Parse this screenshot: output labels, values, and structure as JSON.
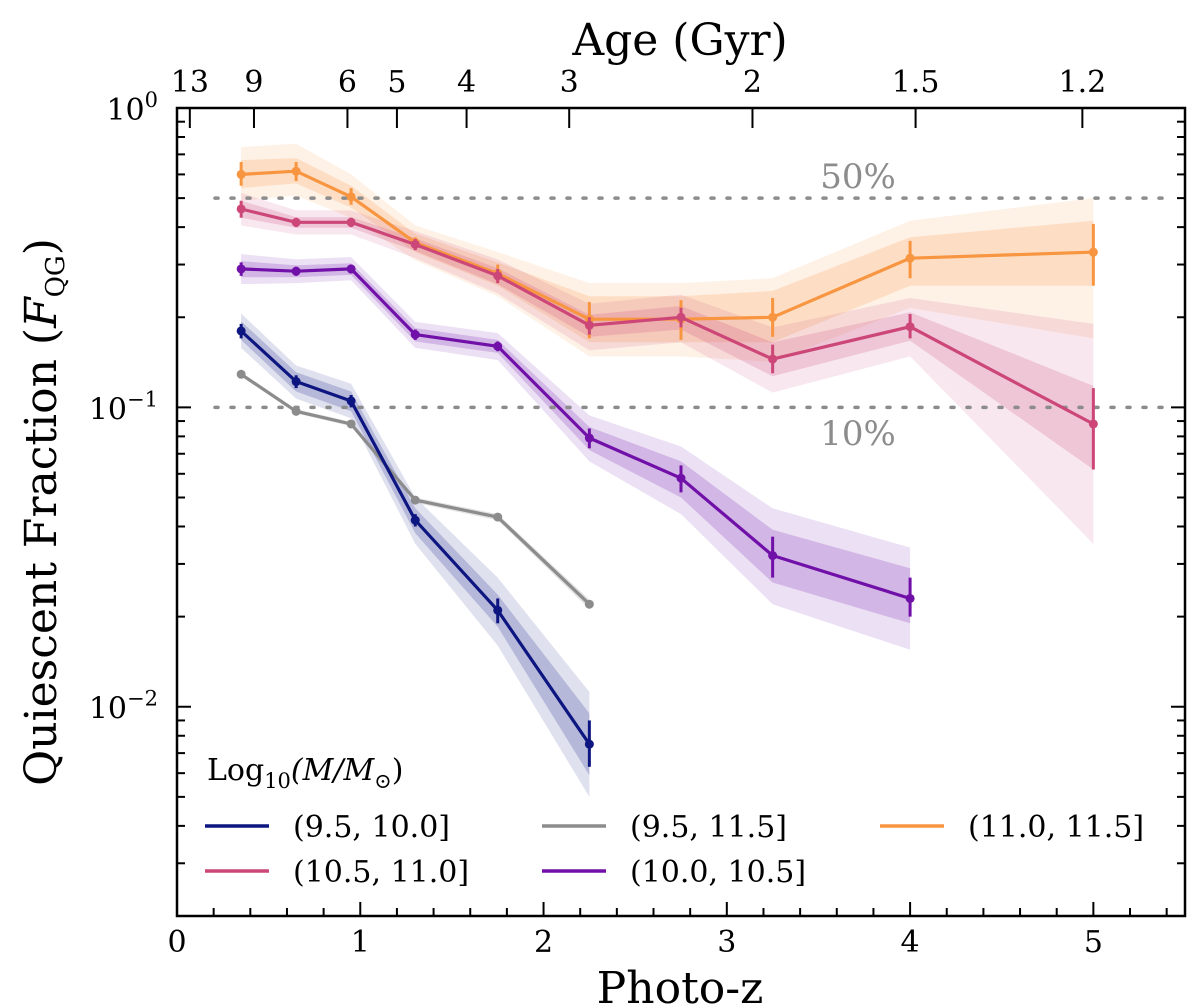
{
  "chart_data": {
    "type": "line",
    "title": "",
    "xlabel": "Photo-z",
    "ylabel": "Quiescent Fraction (F_QG)",
    "ylabel_main": "Quiescent Fraction (",
    "ylabel_symbol": "F",
    "ylabel_sub": "QG",
    "ylabel_close": ")",
    "top_xlabel": "Age (Gyr)",
    "xlim": [
      0,
      5.5
    ],
    "ylim": [
      0.002,
      1.0
    ],
    "yscale": "log",
    "x_ticks": [
      "0",
      "1",
      "2",
      "3",
      "4",
      "5"
    ],
    "y_ticks": [
      {
        "value": 1.0,
        "base": "10",
        "exp": "0"
      },
      {
        "value": 0.1,
        "base": "10",
        "exp": "−1"
      },
      {
        "value": 0.01,
        "base": "10",
        "exp": "−2"
      }
    ],
    "top_ticks": [
      {
        "age": "13",
        "z": 0.07
      },
      {
        "age": "9",
        "z": 0.42
      },
      {
        "age": "6",
        "z": 0.93
      },
      {
        "age": "5",
        "z": 1.2
      },
      {
        "age": "4",
        "z": 1.58
      },
      {
        "age": "3",
        "z": 2.14
      },
      {
        "age": "2",
        "z": 3.14
      },
      {
        "age": "1.5",
        "z": 4.03
      },
      {
        "age": "1.2",
        "z": 4.94
      }
    ],
    "reference_lines": [
      {
        "value": 0.5,
        "label": "50%"
      },
      {
        "value": 0.1,
        "label": "10%"
      }
    ],
    "legend": {
      "title_main": "Log",
      "title_sub": "10",
      "title_rest": "(M/M",
      "title_sun": "⊙",
      "title_close": ")",
      "placement": "lower-left",
      "ncol": 3
    },
    "series": [
      {
        "name": "(9.5, 10.0]",
        "color": "#0d1580",
        "x": [
          0.35,
          0.65,
          0.95,
          1.3,
          1.75,
          2.25
        ],
        "y": [
          0.18,
          0.122,
          0.105,
          0.042,
          0.021,
          0.0075
        ],
        "err_lo": [
          0.17,
          0.116,
          0.1,
          0.04,
          0.019,
          0.0063
        ],
        "err_hi": [
          0.19,
          0.128,
          0.11,
          0.044,
          0.023,
          0.009
        ],
        "band1_lo": [
          0.168,
          0.113,
          0.097,
          0.038,
          0.0185,
          0.0059
        ],
        "band1_hi": [
          0.194,
          0.131,
          0.113,
          0.046,
          0.0237,
          0.0095
        ],
        "band2_lo": [
          0.158,
          0.107,
          0.092,
          0.035,
          0.016,
          0.005
        ],
        "band2_hi": [
          0.206,
          0.138,
          0.12,
          0.05,
          0.027,
          0.0112
        ]
      },
      {
        "name": "(10.0, 10.5]",
        "color": "#7010a8",
        "x": [
          0.35,
          0.65,
          0.95,
          1.3,
          1.75,
          2.25,
          2.75,
          3.25,
          4.0
        ],
        "y": [
          0.29,
          0.285,
          0.29,
          0.175,
          0.16,
          0.079,
          0.058,
          0.032,
          0.023
        ],
        "err_lo": [
          0.275,
          0.275,
          0.28,
          0.168,
          0.154,
          0.073,
          0.052,
          0.027,
          0.02
        ],
        "err_hi": [
          0.305,
          0.295,
          0.3,
          0.182,
          0.166,
          0.085,
          0.064,
          0.037,
          0.027
        ],
        "band1_lo": [
          0.272,
          0.272,
          0.277,
          0.166,
          0.152,
          0.072,
          0.05,
          0.026,
          0.019
        ],
        "band1_hi": [
          0.308,
          0.298,
          0.303,
          0.184,
          0.168,
          0.086,
          0.066,
          0.039,
          0.029
        ],
        "band2_lo": [
          0.258,
          0.26,
          0.266,
          0.158,
          0.144,
          0.066,
          0.044,
          0.022,
          0.0155
        ],
        "band2_hi": [
          0.325,
          0.312,
          0.318,
          0.193,
          0.177,
          0.094,
          0.074,
          0.046,
          0.034
        ]
      },
      {
        "name": "(10.5, 11.0]",
        "color": "#cc4778",
        "x": [
          0.35,
          0.65,
          0.95,
          1.3,
          1.75,
          2.25,
          2.75,
          3.25,
          4.0,
          5.0
        ],
        "y": [
          0.46,
          0.415,
          0.415,
          0.35,
          0.275,
          0.188,
          0.2,
          0.145,
          0.186,
          0.088
        ],
        "err_lo": [
          0.43,
          0.4,
          0.4,
          0.335,
          0.26,
          0.175,
          0.185,
          0.13,
          0.17,
          0.062
        ],
        "err_hi": [
          0.49,
          0.43,
          0.43,
          0.365,
          0.29,
          0.2,
          0.215,
          0.162,
          0.205,
          0.116
        ],
        "band1_lo": [
          0.43,
          0.398,
          0.398,
          0.333,
          0.258,
          0.172,
          0.182,
          0.127,
          0.167,
          0.062
        ],
        "band1_hi": [
          0.49,
          0.432,
          0.432,
          0.367,
          0.292,
          0.204,
          0.218,
          0.165,
          0.208,
          0.118
        ],
        "band2_lo": [
          0.405,
          0.378,
          0.378,
          0.315,
          0.24,
          0.155,
          0.165,
          0.112,
          0.148,
          0.035
        ],
        "band2_hi": [
          0.52,
          0.455,
          0.455,
          0.388,
          0.312,
          0.222,
          0.238,
          0.185,
          0.232,
          0.19
        ]
      },
      {
        "name": "(11.0, 11.5]",
        "color": "#f89540",
        "x": [
          0.35,
          0.65,
          0.95,
          1.3,
          1.75,
          2.25,
          2.75,
          3.25,
          4.0,
          5.0
        ],
        "y": [
          0.6,
          0.615,
          0.505,
          0.355,
          0.28,
          0.197,
          0.197,
          0.2,
          0.315,
          0.33
        ],
        "err_lo": [
          0.55,
          0.57,
          0.475,
          0.34,
          0.26,
          0.17,
          0.168,
          0.172,
          0.27,
          0.255
        ],
        "err_hi": [
          0.66,
          0.66,
          0.54,
          0.37,
          0.3,
          0.225,
          0.228,
          0.232,
          0.36,
          0.41
        ],
        "band1_lo": [
          0.54,
          0.56,
          0.465,
          0.33,
          0.255,
          0.165,
          0.165,
          0.165,
          0.255,
          0.255
        ],
        "band1_hi": [
          0.67,
          0.68,
          0.55,
          0.38,
          0.305,
          0.235,
          0.235,
          0.245,
          0.37,
          0.42
        ],
        "band2_lo": [
          0.49,
          0.51,
          0.43,
          0.31,
          0.235,
          0.148,
          0.148,
          0.142,
          0.215,
          0.17
        ],
        "band2_hi": [
          0.74,
          0.76,
          0.6,
          0.405,
          0.33,
          0.26,
          0.26,
          0.27,
          0.42,
          0.5
        ]
      },
      {
        "name": "(9.5, 11.5]",
        "color": "#8c8c8c",
        "x": [
          0.35,
          0.65,
          0.95,
          1.3,
          1.75,
          2.25
        ],
        "y": [
          0.129,
          0.097,
          0.088,
          0.049,
          0.043,
          0.022
        ],
        "band1_lo": [
          0.127,
          0.0955,
          0.0865,
          0.048,
          0.042,
          0.0212
        ],
        "band1_hi": [
          0.131,
          0.0985,
          0.0895,
          0.05,
          0.044,
          0.0228
        ]
      }
    ],
    "legend_order": [
      0,
      2,
      4,
      1,
      3
    ]
  }
}
